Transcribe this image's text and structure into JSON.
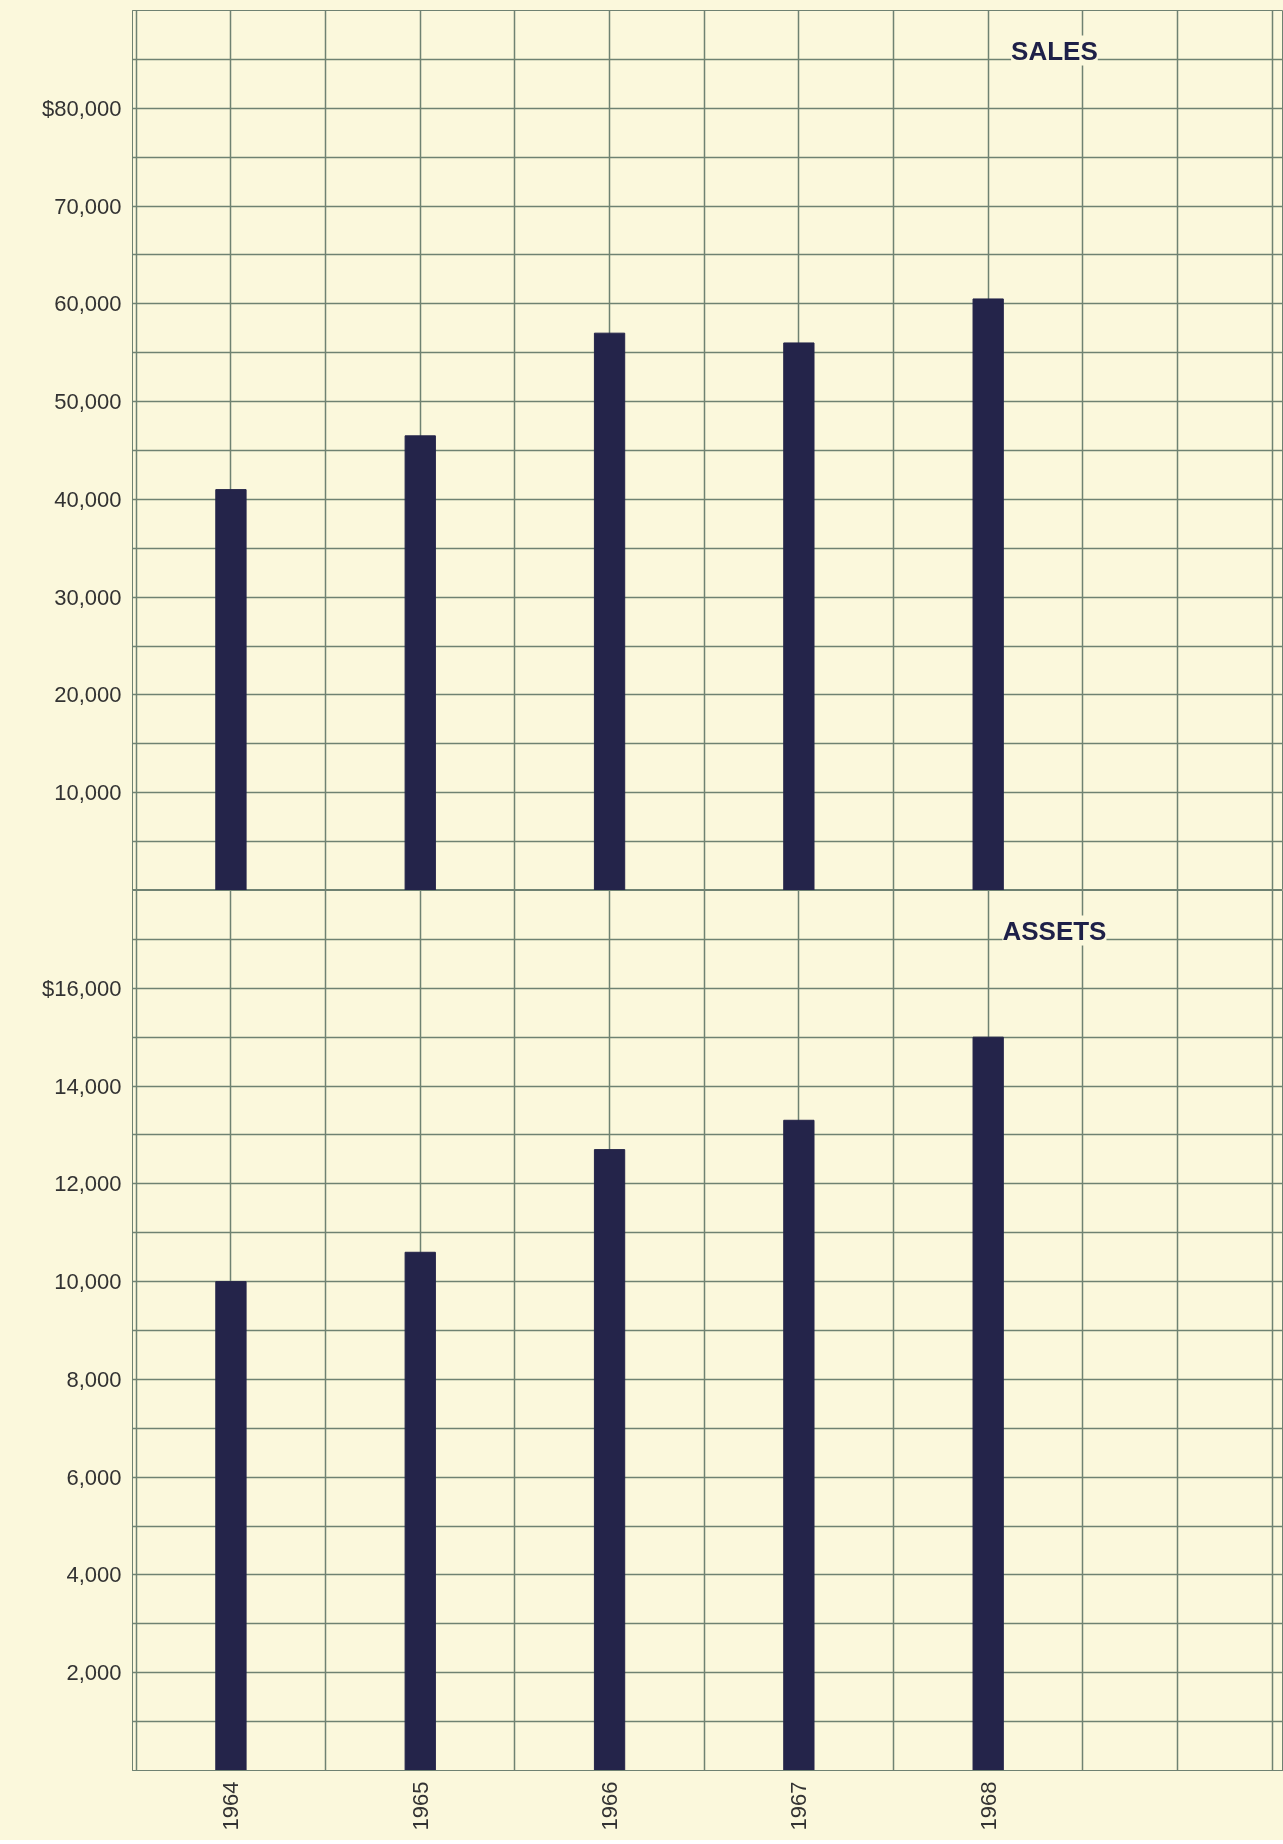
{
  "chart_data": [
    {
      "type": "bar",
      "title": "SALES",
      "categories": [
        "1964",
        "1965",
        "1966",
        "1967",
        "1968"
      ],
      "values": [
        41000,
        46500,
        57000,
        56000,
        60500
      ],
      "color": "#24244a",
      "ylim": [
        0,
        90000
      ],
      "yticks": [
        {
          "value": 5000,
          "label": null
        },
        {
          "value": 10000,
          "label": "10,000"
        },
        {
          "value": 15000,
          "label": null
        },
        {
          "value": 20000,
          "label": "20,000"
        },
        {
          "value": 25000,
          "label": null
        },
        {
          "value": 30000,
          "label": "30,000"
        },
        {
          "value": 35000,
          "label": null
        },
        {
          "value": 40000,
          "label": "40,000"
        },
        {
          "value": 45000,
          "label": null
        },
        {
          "value": 50000,
          "label": "50,000"
        },
        {
          "value": 55000,
          "label": null
        },
        {
          "value": 60000,
          "label": "60,000"
        },
        {
          "value": 65000,
          "label": null
        },
        {
          "value": 70000,
          "label": "70,000"
        },
        {
          "value": 75000,
          "label": null
        },
        {
          "value": 80000,
          "label": "$80,000"
        },
        {
          "value": 85000,
          "label": null
        }
      ],
      "grid": true,
      "tick_labels": "y"
    },
    {
      "type": "bar",
      "title": "ASSETS",
      "categories": [
        "1964",
        "1965",
        "1966",
        "1967",
        "1968"
      ],
      "values": [
        10000,
        10600,
        12700,
        13300,
        15000
      ],
      "color": "#24244a",
      "ylim": [
        0,
        18000
      ],
      "yticks": [
        {
          "value": 1000,
          "label": null
        },
        {
          "value": 2000,
          "label": "2,000"
        },
        {
          "value": 3000,
          "label": null
        },
        {
          "value": 4000,
          "label": "4,000"
        },
        {
          "value": 5000,
          "label": null
        },
        {
          "value": 6000,
          "label": "6,000"
        },
        {
          "value": 7000,
          "label": null
        },
        {
          "value": 8000,
          "label": "8,000"
        },
        {
          "value": 9000,
          "label": null
        },
        {
          "value": 10000,
          "label": "10,000"
        },
        {
          "value": 11000,
          "label": null
        },
        {
          "value": 12000,
          "label": "12,000"
        },
        {
          "value": 13000,
          "label": null
        },
        {
          "value": 14000,
          "label": "14,000"
        },
        {
          "value": 15000,
          "label": null
        },
        {
          "value": 16000,
          "label": "$16,000"
        },
        {
          "value": 17000,
          "label": null
        }
      ],
      "grid": true
    }
  ]
}
